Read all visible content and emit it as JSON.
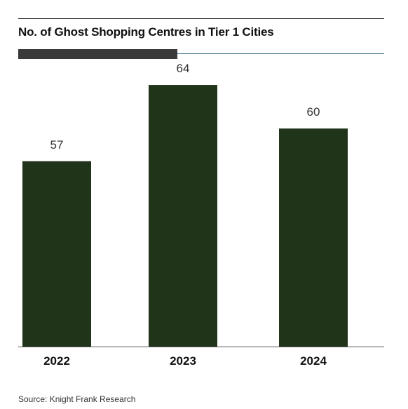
{
  "header": {
    "title": "No. of Ghost Shopping Centres in Tier 1 Cities"
  },
  "footer": {
    "source": "Source: Knight Frank Research"
  },
  "colors": {
    "bar": "#1f3419",
    "accent_dark": "#3a3a3a",
    "accent_line": "#4a7d96",
    "axis": "#555555",
    "text": "#1a1a1a"
  },
  "chart_data": {
    "type": "bar",
    "title": "No. of Ghost Shopping Centres in Tier 1 Cities",
    "categories": [
      "2022",
      "2023",
      "2024"
    ],
    "values": [
      57,
      64,
      60
    ],
    "data_labels": [
      "57",
      "64",
      "60"
    ],
    "xlabel": "",
    "ylabel": "",
    "ylim": [
      40,
      66
    ],
    "grid": false,
    "legend": "none"
  }
}
